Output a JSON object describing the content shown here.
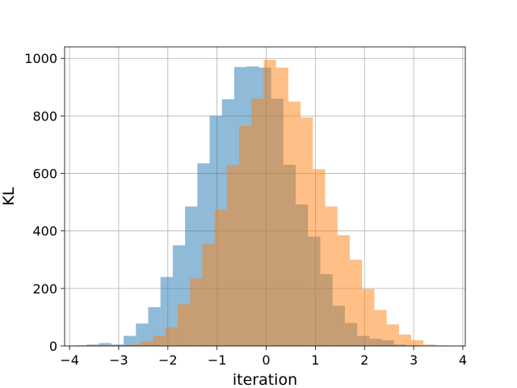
{
  "chart_data": {
    "type": "histogram",
    "title": "",
    "xlabel": "iteration",
    "ylabel": "KL",
    "xlim": [
      -4.1,
      4.05
    ],
    "ylim": [
      0,
      1040
    ],
    "grid": true,
    "xticks": [
      -4,
      -3,
      -2,
      -1,
      0,
      1,
      2,
      3,
      4
    ],
    "xtick_labels": [
      "−4",
      "−3",
      "−2",
      "−1",
      "0",
      "1",
      "2",
      "3",
      "4"
    ],
    "yticks": [
      0,
      200,
      400,
      600,
      800,
      1000
    ],
    "ytick_labels": [
      "0",
      "200",
      "400",
      "600",
      "800",
      "1000"
    ],
    "series": [
      {
        "color": "#1f77b4",
        "opacity": 0.5,
        "bin_edges": [
          -3.9,
          -3.65,
          -3.4,
          -3.15,
          -2.9,
          -2.65,
          -2.4,
          -2.15,
          -1.9,
          -1.65,
          -1.4,
          -1.15,
          -0.9,
          -0.65,
          -0.4,
          -0.15,
          0.1,
          0.35,
          0.6,
          0.85,
          1.1,
          1.35,
          1.6,
          1.85,
          2.1,
          2.35,
          2.6,
          2.85,
          3.1,
          3.35,
          3.6
        ],
        "values": [
          2,
          5,
          10,
          5,
          35,
          78,
          135,
          240,
          350,
          485,
          635,
          800,
          858,
          970,
          972,
          968,
          860,
          630,
          492,
          380,
          250,
          140,
          80,
          35,
          25,
          20,
          5,
          2,
          0,
          0
        ]
      },
      {
        "color": "#ff7f0e",
        "opacity": 0.5,
        "bin_edges": [
          -3.55,
          -3.3,
          -3.05,
          -2.8,
          -2.55,
          -2.3,
          -2.05,
          -1.8,
          -1.55,
          -1.3,
          -1.05,
          -0.8,
          -0.55,
          -0.3,
          -0.05,
          0.2,
          0.45,
          0.7,
          0.95,
          1.2,
          1.45,
          1.7,
          1.95,
          2.2,
          2.45,
          2.7,
          2.95,
          3.2,
          3.45,
          3.7
        ],
        "values": [
          0,
          0,
          2,
          5,
          15,
          35,
          65,
          145,
          235,
          355,
          475,
          630,
          765,
          860,
          995,
          968,
          850,
          795,
          615,
          485,
          385,
          300,
          198,
          125,
          75,
          40,
          20,
          5,
          2
        ]
      }
    ]
  }
}
